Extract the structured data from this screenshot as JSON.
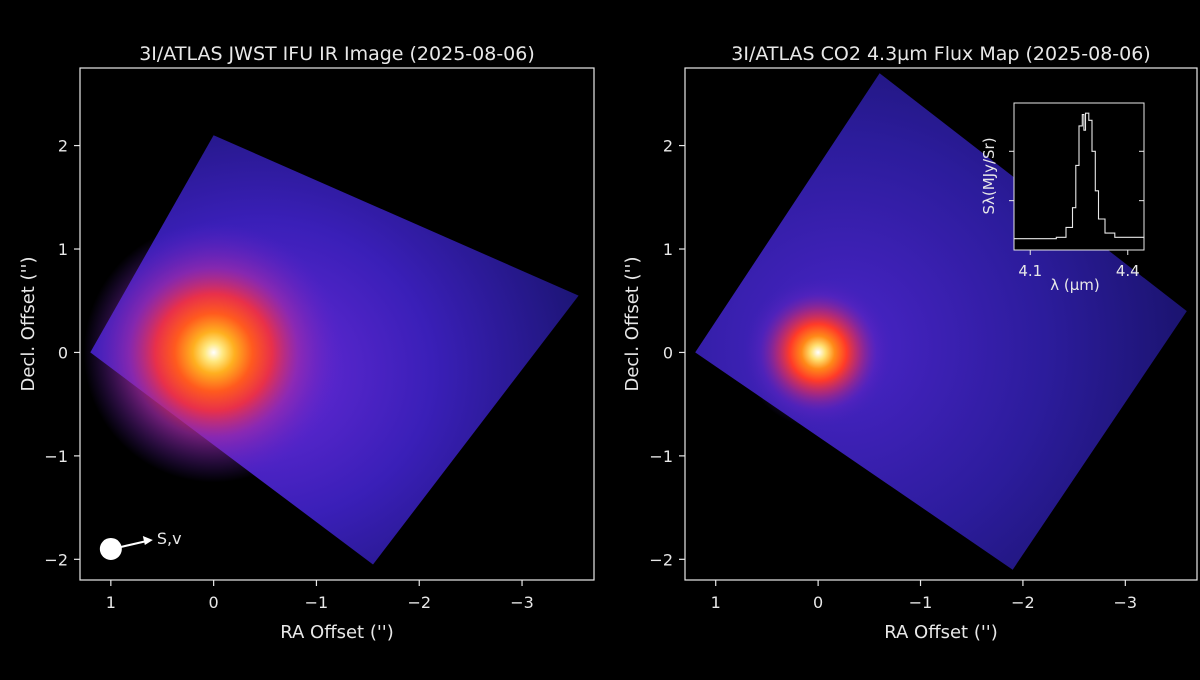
{
  "panels": [
    {
      "title": "3I/ATLAS JWST IFU IR Image (2025-08-06)",
      "xlabel": "RA Offset ('')",
      "ylabel": "Decl. Offset ('')",
      "xticks": [
        "1",
        "0",
        "−1",
        "−2",
        "−3"
      ],
      "yticks": [
        "2",
        "1",
        "0",
        "−1",
        "−2"
      ],
      "annotation": "S,v"
    },
    {
      "title": "3I/ATLAS CO2 4.3µm Flux Map (2025-08-06)",
      "xlabel": "RA Offset ('')",
      "ylabel": "Decl. Offset ('')",
      "xticks": [
        "1",
        "0",
        "−1",
        "−2",
        "−3"
      ],
      "yticks": [
        "2",
        "1",
        "0",
        "−1",
        "−2"
      ],
      "inset": {
        "ylabel": "Sλ(MJy/Sr)",
        "xlabel": "λ (µm)",
        "xticks": [
          "4.1",
          "4.4"
        ]
      }
    }
  ],
  "chart_data": [
    {
      "type": "heatmap",
      "title": "3I/ATLAS JWST IFU IR Image (2025-08-06)",
      "xlabel": "RA Offset ('')",
      "ylabel": "Decl. Offset ('')",
      "xlim": [
        1.3,
        -3.7
      ],
      "ylim": [
        -2.2,
        2.75
      ],
      "x_inverted": true,
      "colormap": "plasma-like (black-purple-red-yellow-white)",
      "footprint_corners": [
        [
          1.2,
          0.0
        ],
        [
          0.0,
          2.1
        ],
        [
          -3.55,
          0.55
        ],
        [
          -1.55,
          -2.05
        ]
      ],
      "peak": {
        "ra": 0.0,
        "dec": 0.0
      },
      "annotation": {
        "text": "S,v",
        "ra": 1.0,
        "dec": -1.9
      }
    },
    {
      "type": "heatmap",
      "title": "3I/ATLAS CO2 4.3µm Flux Map (2025-08-06)",
      "xlabel": "RA Offset ('')",
      "ylabel": "Decl. Offset ('')",
      "xlim": [
        1.3,
        -3.7
      ],
      "ylim": [
        -2.2,
        2.75
      ],
      "x_inverted": true,
      "colormap": "plasma-like (black-purple-red-yellow-white)",
      "footprint_corners": [
        [
          1.2,
          0.0
        ],
        [
          -0.6,
          2.7
        ],
        [
          -3.6,
          0.4
        ],
        [
          -1.9,
          -2.1
        ]
      ],
      "peak": {
        "ra": 0.0,
        "dec": 0.0
      },
      "inset": {
        "type": "line",
        "xlabel": "λ (µm)",
        "ylabel": "Sλ(MJy/Sr)",
        "xlim": [
          4.05,
          4.45
        ],
        "x": [
          4.05,
          4.18,
          4.21,
          4.23,
          4.24,
          4.25,
          4.26,
          4.265,
          4.27,
          4.28,
          4.29,
          4.3,
          4.31,
          4.33,
          4.36,
          4.45
        ],
        "y": [
          0.08,
          0.09,
          0.16,
          0.3,
          0.6,
          0.88,
          0.96,
          0.85,
          0.97,
          0.92,
          0.7,
          0.42,
          0.22,
          0.12,
          0.09,
          0.08
        ]
      }
    }
  ]
}
